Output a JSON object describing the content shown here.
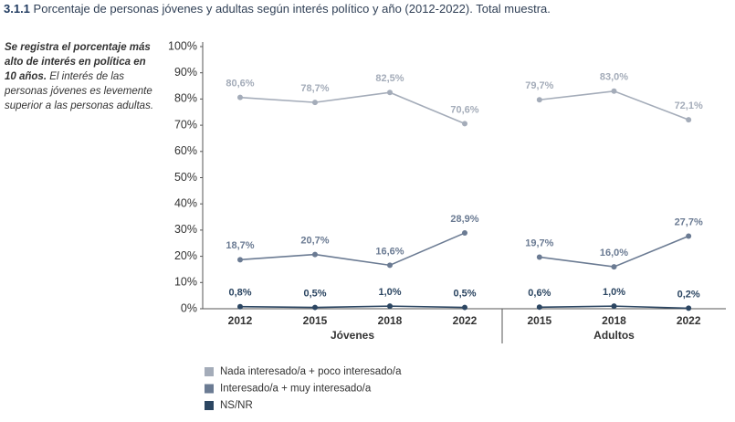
{
  "chart_data": {
    "type": "line",
    "number": "3.1.1",
    "title": "Porcentaje de personas jóvenes y adultas según interés político y año (2012-2022). Total muestra.",
    "note": {
      "bold": "Se registra el porcentaje más alto de interés en política en 10 años.",
      "text": "El interés de las personas jóvenes es levemente superior a las personas adultas."
    },
    "ylim": [
      0,
      100
    ],
    "yticks": [
      {
        "value": 0,
        "label": "0%"
      },
      {
        "value": 10,
        "label": "10%"
      },
      {
        "value": 20,
        "label": "20%"
      },
      {
        "value": 30,
        "label": "30%"
      },
      {
        "value": 40,
        "label": "40%"
      },
      {
        "value": 50,
        "label": "50%"
      },
      {
        "value": 60,
        "label": "60%"
      },
      {
        "value": 70,
        "label": "70%"
      },
      {
        "value": 80,
        "label": "80%"
      },
      {
        "value": 90,
        "label": "90%"
      },
      {
        "value": 100,
        "label": "100%"
      }
    ],
    "series": [
      {
        "name": "Nada interesado/a + poco interesado/a",
        "color": "#a4acb9"
      },
      {
        "name": "Interesado/a + muy interesado/a",
        "color": "#6b7b93"
      },
      {
        "name": "NS/NR",
        "color": "#2c4662"
      }
    ],
    "panels": [
      {
        "name": "Jóvenes",
        "categories": [
          "2012",
          "2015",
          "2018",
          "2022"
        ],
        "values": [
          [
            80.6,
            78.7,
            82.5,
            70.6
          ],
          [
            18.7,
            20.7,
            16.6,
            28.9
          ],
          [
            0.8,
            0.5,
            1.0,
            0.5
          ]
        ],
        "value_labels": [
          [
            "80,6%",
            "78,7%",
            "82,5%",
            "70,6%"
          ],
          [
            "18,7%",
            "20,7%",
            "16,6%",
            "28,9%"
          ],
          [
            "0,8%",
            "0,5%",
            "1,0%",
            "0,5%"
          ]
        ]
      },
      {
        "name": "Adultos",
        "categories": [
          "2015",
          "2018",
          "2022"
        ],
        "values": [
          [
            79.7,
            83.0,
            72.1
          ],
          [
            19.7,
            16.0,
            27.7
          ],
          [
            0.6,
            1.0,
            0.2
          ]
        ],
        "value_labels": [
          [
            "79,7%",
            "83,0%",
            "72,1%"
          ],
          [
            "19,7%",
            "16,0%",
            "27,7%"
          ],
          [
            "0,6%",
            "1,0%",
            "0,2%"
          ]
        ]
      }
    ]
  }
}
